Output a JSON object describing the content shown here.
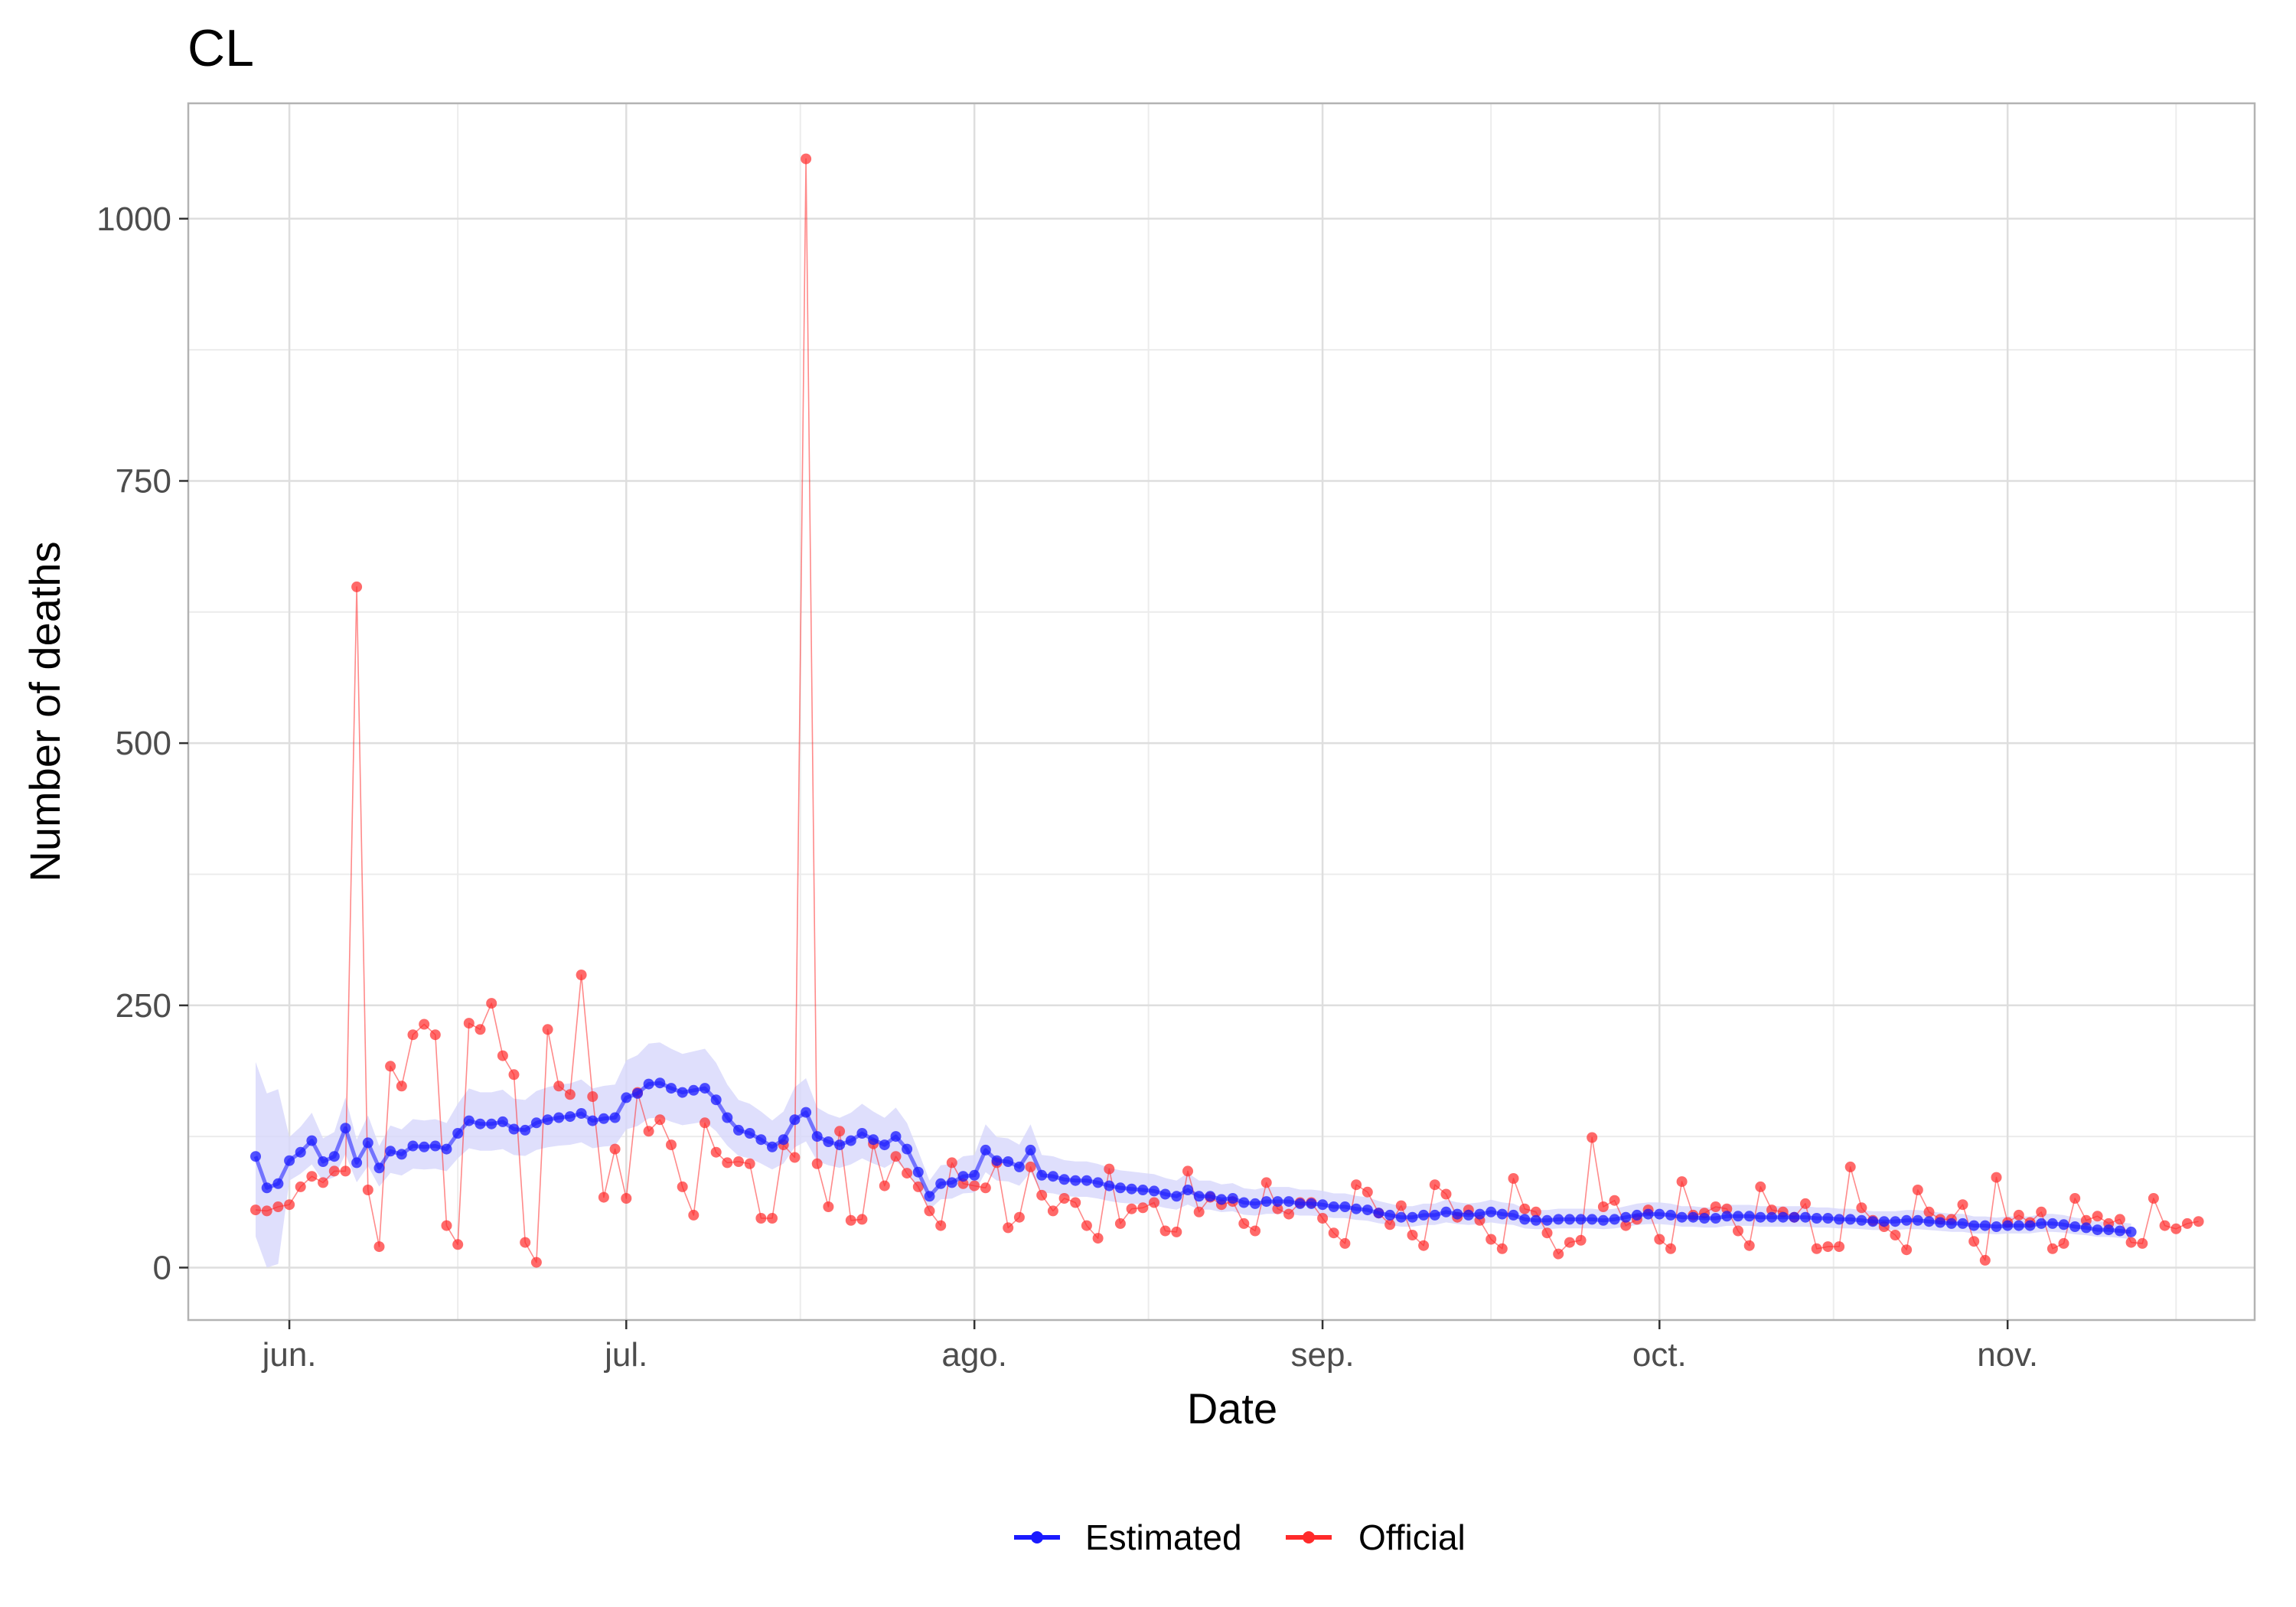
{
  "chart_data": {
    "type": "line",
    "title": "CL",
    "xlabel": "Date",
    "ylabel": "Number of deaths",
    "x_start": "2020-05-29",
    "x_end": "2020-11-16",
    "xlim": [
      "2020-05-23",
      "2020-11-23"
    ],
    "ylim": [
      -50,
      1110
    ],
    "x_ticks": [
      {
        "label": "jun.",
        "date": "2020-06-01"
      },
      {
        "label": "jul.",
        "date": "2020-07-01"
      },
      {
        "label": "ago.",
        "date": "2020-08-01"
      },
      {
        "label": "sep.",
        "date": "2020-09-01"
      },
      {
        "label": "oct.",
        "date": "2020-10-01"
      },
      {
        "label": "nov.",
        "date": "2020-11-01"
      }
    ],
    "y_ticks": [
      0,
      250,
      500,
      750,
      1000
    ],
    "grid": true,
    "legend_position": "bottom",
    "colors": {
      "estimated": "#1a1aff",
      "official": "#ff2a2a",
      "band": "#d7d7fb"
    },
    "series": [
      {
        "name": "Estimated",
        "color": "#1a1aff",
        "values": [
          106,
          76,
          80,
          102,
          110,
          121,
          101,
          106,
          133,
          100,
          119,
          95,
          111,
          108,
          116,
          115,
          116,
          113,
          128,
          140,
          137,
          137,
          139,
          132,
          131,
          138,
          141,
          143,
          144,
          147,
          140,
          142,
          143,
          162,
          166,
          175,
          176,
          171,
          167,
          169,
          171,
          160,
          143,
          131,
          128,
          122,
          115,
          122,
          141,
          148,
          125,
          120,
          117,
          121,
          128,
          122,
          117,
          125,
          113,
          91,
          68,
          80,
          81,
          87,
          88,
          112,
          102,
          101,
          96,
          112,
          88,
          87,
          84,
          83,
          83,
          81,
          78,
          76,
          75,
          74,
          73,
          70,
          68,
          74,
          68,
          68,
          65,
          66,
          62,
          61,
          63,
          63,
          63,
          61,
          61,
          60,
          58,
          58,
          56,
          55,
          52,
          50,
          48,
          48,
          50,
          50,
          53,
          51,
          50,
          51,
          53,
          51,
          50,
          46,
          45,
          45,
          46,
          46,
          46,
          46,
          45,
          46,
          48,
          50,
          51,
          51,
          50,
          48,
          48,
          47,
          47,
          49,
          49,
          49,
          48,
          48,
          48,
          48,
          48,
          47,
          47,
          46,
          46,
          45,
          44,
          44,
          44,
          45,
          45,
          44,
          43,
          42,
          42,
          40,
          40,
          39,
          40,
          40,
          40,
          42,
          42,
          41,
          39,
          38,
          36,
          36,
          35,
          34
        ]
      },
      {
        "name": "Official",
        "color": "#ff2a2a",
        "values": [
          55,
          54,
          58,
          60,
          77,
          87,
          81,
          92,
          92,
          649,
          74,
          20,
          192,
          173,
          222,
          232,
          222,
          40,
          22,
          233,
          227,
          252,
          202,
          184,
          24,
          5,
          227,
          173,
          165,
          279,
          163,
          67,
          113,
          66,
          167,
          130,
          141,
          117,
          77,
          50,
          138,
          110,
          100,
          101,
          99,
          47,
          47,
          117,
          105,
          1057,
          99,
          58,
          130,
          45,
          46,
          118,
          78,
          106,
          90,
          77,
          54,
          40,
          100,
          80,
          78,
          76,
          100,
          38,
          48,
          96,
          69,
          54,
          66,
          62,
          40,
          28,
          94,
          42,
          56,
          57,
          62,
          35,
          34,
          92,
          53,
          67,
          60,
          63,
          42,
          35,
          81,
          56,
          51,
          62,
          62,
          47,
          33,
          23,
          79,
          72,
          52,
          41,
          59,
          31,
          21,
          79,
          70,
          48,
          55,
          45,
          27,
          18,
          85,
          56,
          53,
          33,
          13,
          24,
          26,
          124,
          58,
          64,
          40,
          46,
          55,
          27,
          18,
          82,
          50,
          52,
          58,
          56,
          35,
          21,
          77,
          55,
          53,
          48,
          61,
          18,
          20,
          20,
          96,
          57,
          45,
          39,
          31,
          17,
          74,
          53,
          46,
          46,
          60,
          25,
          7,
          86,
          43,
          50,
          43,
          53,
          18,
          23,
          66,
          45,
          49,
          42,
          46,
          24,
          23,
          66,
          40,
          37,
          42,
          44
        ]
      }
    ]
  }
}
